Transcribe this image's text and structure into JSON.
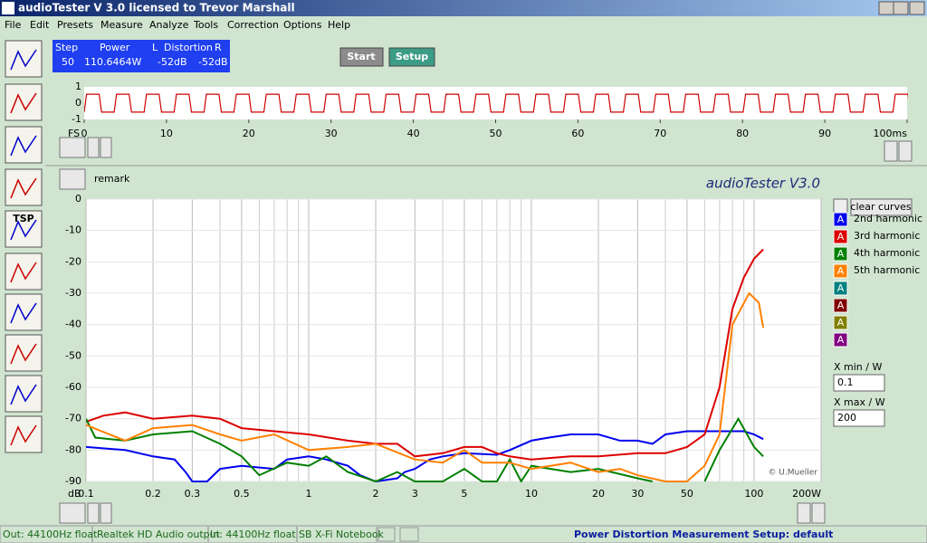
{
  "window": {
    "title": "audioTester  V 3.0   licensed to Trevor Marshall"
  },
  "menu": [
    "File",
    "Edit",
    "Presets",
    "Measure",
    "Analyze",
    "Tools",
    "Correction",
    "Options",
    "Help"
  ],
  "status_panel": {
    "headers": [
      "Step",
      "Power",
      "L",
      "Distortion",
      "R"
    ],
    "values": [
      "50",
      "110.6464W",
      "-52dB",
      "-52dB"
    ]
  },
  "buttons": [
    "Start",
    "Setup"
  ],
  "toolbar": {
    "tsp_label": "TSP"
  },
  "waveform": {
    "type": "square",
    "x_unit_label": "FS",
    "xlim": [
      0,
      100
    ],
    "xticks": [
      0,
      10,
      20,
      30,
      40,
      50,
      60,
      70,
      80,
      90,
      {
        "value": 100,
        "label": "100ms"
      }
    ],
    "ylim": [
      -1,
      1
    ],
    "yticks": [
      1,
      0,
      -1
    ],
    "period": 3.64,
    "amplitude": 0.55,
    "color": "#cc0000"
  },
  "chart": {
    "type": "line",
    "remark": "remark",
    "title": "audioTester  V3.0",
    "credit": "© U.Mueller",
    "y_unit": "dB",
    "xlog": true,
    "xlim": [
      0.1,
      200
    ],
    "xticks": [
      0.1,
      0.2,
      0.3,
      0.5,
      1,
      2,
      3,
      5,
      10,
      20,
      30,
      50,
      100,
      {
        "value": 200,
        "label": "200W"
      }
    ],
    "minor_xticks": [
      0.4,
      0.6,
      0.7,
      0.8,
      0.9,
      4,
      6,
      7,
      8,
      9,
      40,
      60,
      70,
      80,
      90
    ],
    "ylim": [
      -90,
      0
    ],
    "yticks": [
      0,
      -10,
      -20,
      -30,
      -40,
      -50,
      -60,
      -70,
      -80,
      -90
    ],
    "series": [
      {
        "name": "2nd harmonic",
        "marker": "A",
        "color": "#0000ee",
        "x": [
          0.1,
          0.15,
          0.2,
          0.25,
          0.28,
          0.3,
          0.35,
          0.4,
          0.5,
          0.7,
          0.8,
          1,
          1.2,
          1.5,
          1.7,
          2,
          2.5,
          2.7,
          3,
          3.5,
          4,
          5,
          7,
          8,
          10,
          12,
          15,
          20,
          25,
          30,
          35,
          40,
          50,
          60,
          70,
          80,
          90,
          100,
          110
        ],
        "values": [
          -79,
          -80,
          -82,
          -83,
          -87,
          -90,
          -90,
          -86,
          -85,
          -86,
          -83,
          -82,
          -83,
          -85,
          -88,
          -90,
          -89,
          -87,
          -86,
          -83,
          -82,
          -81,
          -81.5,
          -80,
          -77,
          -76,
          -75,
          -75,
          -77,
          -77,
          -78,
          -75,
          -74,
          -74,
          -74,
          -74,
          -74,
          -75,
          -76.5
        ]
      },
      {
        "name": "3rd harmonic",
        "marker": "A",
        "color": "#dd0000",
        "x": [
          0.1,
          0.12,
          0.15,
          0.2,
          0.3,
          0.4,
          0.5,
          0.7,
          1,
          1.5,
          2,
          2.5,
          3,
          4,
          5,
          6,
          7,
          8,
          10,
          15,
          20,
          30,
          40,
          50,
          60,
          70,
          80,
          90,
          100,
          110
        ],
        "values": [
          -71,
          -69,
          -68,
          -70,
          -69,
          -70,
          -73,
          -74,
          -75,
          -77,
          -78,
          -78,
          -82,
          -81,
          -79,
          -79,
          -81,
          -82,
          -83,
          -82,
          -82,
          -81,
          -81,
          -79,
          -75,
          -60,
          -35,
          -25,
          -19,
          -16
        ]
      },
      {
        "name": "4th harmonic",
        "marker": "A",
        "color": "#008000",
        "x": [
          0.1,
          0.11,
          0.15,
          0.2,
          0.3,
          0.4,
          0.5,
          0.6,
          0.8,
          1,
          1.2,
          1.5,
          2,
          2.5,
          3,
          4,
          5,
          6,
          7,
          8,
          9,
          10,
          15,
          20,
          30,
          35,
          50,
          60,
          70,
          85,
          100,
          110
        ],
        "values": [
          -70,
          -76,
          -77,
          -75,
          -74,
          -78,
          -82,
          -88,
          -84,
          -85,
          -82,
          -87,
          -90,
          -87,
          -90,
          -90,
          -86,
          -90,
          -90,
          -83,
          -90,
          -85,
          -87,
          -86,
          -89,
          -90,
          null,
          -90,
          -80,
          -70,
          -79,
          -82
        ]
      },
      {
        "name": "5th harmonic",
        "marker": "A",
        "color": "#ff8000",
        "x": [
          0.1,
          0.15,
          0.2,
          0.3,
          0.4,
          0.5,
          0.7,
          1,
          1.5,
          2,
          3,
          4,
          5,
          6,
          8,
          10,
          15,
          20,
          25,
          30,
          40,
          50,
          60,
          70,
          80,
          95,
          105,
          110
        ],
        "values": [
          -72,
          -77,
          -73,
          -72,
          -75,
          -77,
          -75,
          -80,
          -79,
          -78,
          -83,
          -84,
          -80,
          -84,
          -84,
          -86,
          -84,
          -87,
          -86,
          -88,
          -90,
          -90,
          -85,
          -75,
          -40,
          -30,
          -33,
          -41
        ]
      }
    ],
    "unused_curves": [
      {
        "marker": "A",
        "color": "#008080"
      },
      {
        "marker": "A",
        "color": "#800000"
      },
      {
        "marker": "A",
        "color": "#808000"
      },
      {
        "marker": "A",
        "color": "#800080"
      }
    ]
  },
  "curve_panel": {
    "clear_button": "clear curves",
    "xmin_label": "X min / W",
    "xmin": "0.1",
    "xmax_label": "X max / W",
    "xmax": "200"
  },
  "status_bar": [
    "Out: 44100Hz float",
    "Realtek HD Audio output",
    "In: 44100Hz float",
    "SB X-Fi Notebook",
    "Power Distortion Measurement Setup:  default"
  ]
}
